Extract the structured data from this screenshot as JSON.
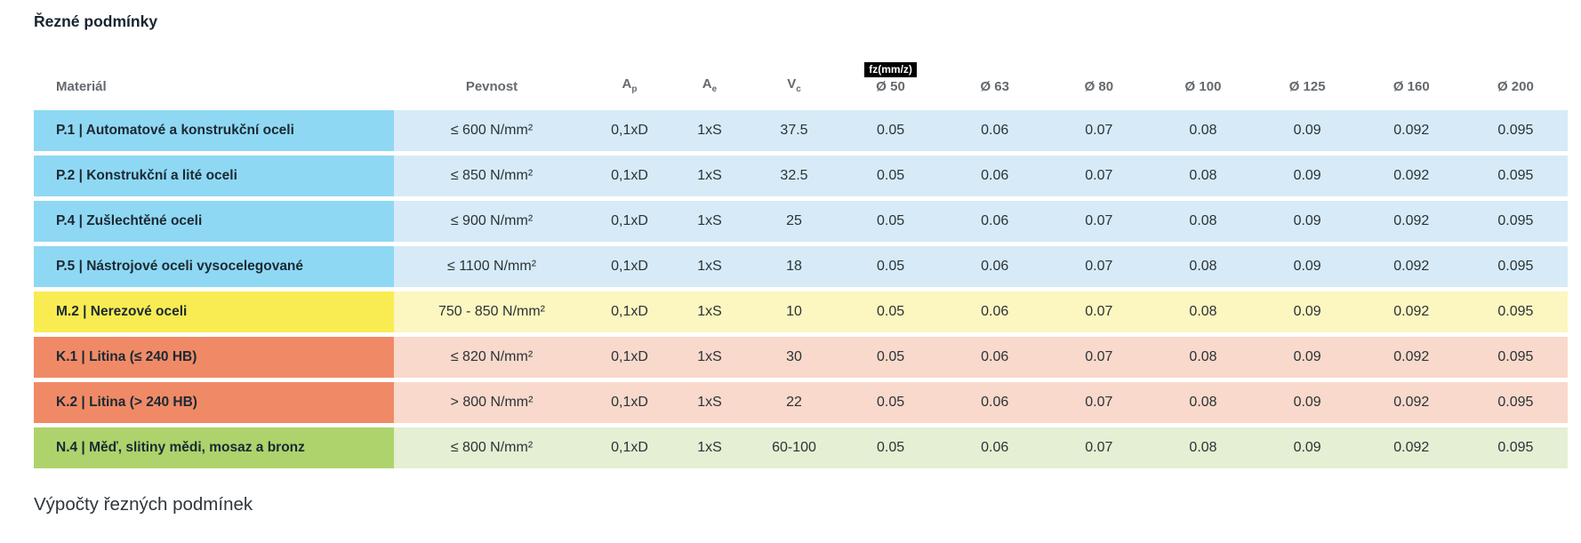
{
  "page": {
    "title": "Řezné podmínky",
    "footer_heading": "Výpočty řezných podmínek"
  },
  "table": {
    "headers": {
      "material": "Materiál",
      "pevnost": "Pevnost",
      "ap": {
        "base": "A",
        "sub": "p"
      },
      "ae": {
        "base": "A",
        "sub": "e"
      },
      "vc": {
        "base": "V",
        "sub": "c"
      },
      "fz_badge": "fz(mm/z)",
      "diameters": [
        "Ø 50",
        "Ø 63",
        "Ø 80",
        "Ø 100",
        "Ø 125",
        "Ø 160",
        "Ø 200"
      ]
    },
    "colors": {
      "blue": {
        "name_bg": "#8fd8f3",
        "row_bg": "#d6ebf7"
      },
      "yellow": {
        "name_bg": "#f8ec52",
        "row_bg": "#fcf6c0"
      },
      "salmon": {
        "name_bg": "#f08a66",
        "row_bg": "#f8d9cb"
      },
      "green": {
        "name_bg": "#aed36c",
        "row_bg": "#e4efd3"
      }
    },
    "rows": [
      {
        "color": "blue",
        "material": "P.1 | Automatové a konstrukční oceli",
        "pevnost": "≤ 600 N/mm²",
        "ap": "0,1xD",
        "ae": "1xS",
        "vc": "37.5",
        "fz": [
          "0.05",
          "0.06",
          "0.07",
          "0.08",
          "0.09",
          "0.092",
          "0.095"
        ]
      },
      {
        "color": "blue",
        "material": "P.2 | Konstrukční a lité oceli",
        "pevnost": "≤ 850 N/mm²",
        "ap": "0,1xD",
        "ae": "1xS",
        "vc": "32.5",
        "fz": [
          "0.05",
          "0.06",
          "0.07",
          "0.08",
          "0.09",
          "0.092",
          "0.095"
        ]
      },
      {
        "color": "blue",
        "material": "P.4 | Zušlechtěné oceli",
        "pevnost": "≤ 900 N/mm²",
        "ap": "0,1xD",
        "ae": "1xS",
        "vc": "25",
        "fz": [
          "0.05",
          "0.06",
          "0.07",
          "0.08",
          "0.09",
          "0.092",
          "0.095"
        ]
      },
      {
        "color": "blue",
        "material": "P.5 | Nástrojové oceli vysocelegované",
        "pevnost": "≤ 1100 N/mm²",
        "ap": "0,1xD",
        "ae": "1xS",
        "vc": "18",
        "fz": [
          "0.05",
          "0.06",
          "0.07",
          "0.08",
          "0.09",
          "0.092",
          "0.095"
        ]
      },
      {
        "color": "yellow",
        "material": "M.2 | Nerezové oceli",
        "pevnost": "750 - 850 N/mm²",
        "ap": "0,1xD",
        "ae": "1xS",
        "vc": "10",
        "fz": [
          "0.05",
          "0.06",
          "0.07",
          "0.08",
          "0.09",
          "0.092",
          "0.095"
        ]
      },
      {
        "color": "salmon",
        "material": "K.1 | Litina (≤ 240 HB)",
        "pevnost": "≤ 820 N/mm²",
        "ap": "0,1xD",
        "ae": "1xS",
        "vc": "30",
        "fz": [
          "0.05",
          "0.06",
          "0.07",
          "0.08",
          "0.09",
          "0.092",
          "0.095"
        ]
      },
      {
        "color": "salmon",
        "material": "K.2 | Litina (> 240 HB)",
        "pevnost": "> 800 N/mm²",
        "ap": "0,1xD",
        "ae": "1xS",
        "vc": "22",
        "fz": [
          "0.05",
          "0.06",
          "0.07",
          "0.08",
          "0.09",
          "0.092",
          "0.095"
        ]
      },
      {
        "color": "green",
        "material": "N.4 | Měď, slitiny mědi, mosaz a bronz",
        "pevnost": "≤ 800 N/mm²",
        "ap": "0,1xD",
        "ae": "1xS",
        "vc": "60-100",
        "fz": [
          "0.05",
          "0.06",
          "0.07",
          "0.08",
          "0.09",
          "0.092",
          "0.095"
        ]
      }
    ]
  }
}
